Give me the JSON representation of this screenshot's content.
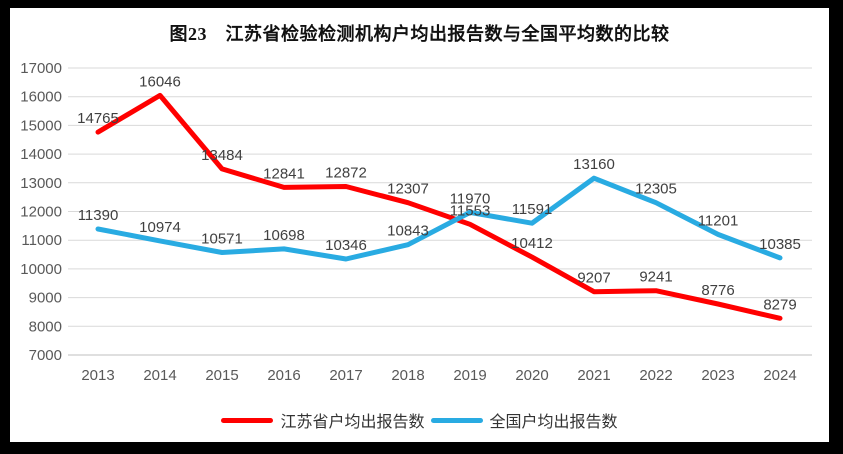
{
  "title": "图23　江苏省检验检测机构户均出报告数与全国平均数的比较",
  "chart_data": {
    "type": "line",
    "title": "图23　江苏省检验检测机构户均出报告数与全国平均数的比较",
    "categories": [
      "2013",
      "2014",
      "2015",
      "2016",
      "2017",
      "2018",
      "2019",
      "2020",
      "2021",
      "2022",
      "2023",
      "2024"
    ],
    "series": [
      {
        "name": "江苏省户均出报告数",
        "color": "#FF0000",
        "values": [
          14765,
          16046,
          13484,
          12841,
          12872,
          12307,
          11553,
          10412,
          9207,
          9241,
          8776,
          8279
        ]
      },
      {
        "name": "全国户均出报告数",
        "color": "#29ABE2",
        "values": [
          11390,
          10974,
          10571,
          10698,
          10346,
          10843,
          11970,
          11591,
          13160,
          12305,
          11201,
          10385
        ]
      }
    ],
    "xlabel": "",
    "ylabel": "",
    "ylim": [
      7000,
      17000
    ],
    "ytick_step": 1000,
    "yticks": [
      "7000",
      "8000",
      "9000",
      "10000",
      "11000",
      "12000",
      "13000",
      "14000",
      "15000",
      "16000",
      "17000"
    ],
    "grid": "horizontal",
    "grid_color": "#D9D9D9",
    "axis_line_color": "#BFBFBF",
    "axis_text_color": "#595959",
    "data_labels": true,
    "data_label_color": "#404040",
    "legend_position": "bottom"
  },
  "legend": {
    "items": [
      {
        "label": "江苏省户均出报告数",
        "color": "#FF0000"
      },
      {
        "label": "全国户均出报告数",
        "color": "#29ABE2"
      }
    ]
  },
  "colors": {
    "frame": "#000000",
    "panel": "#FFFFFF",
    "jiangsu_series": "#FF0000",
    "national_series": "#29ABE2"
  }
}
